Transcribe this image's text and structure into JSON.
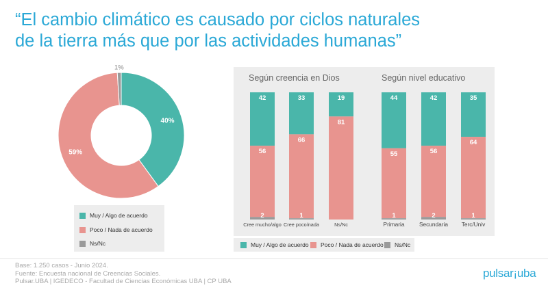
{
  "title": {
    "line1": "“El cambio climático es causado por ciclos naturales",
    "line2": "de la tierra más que por las actividades humanas”"
  },
  "colors": {
    "agree": "#4ab6aa",
    "disagree": "#e8948f",
    "nsnc": "#9a9a9a",
    "title": "#2aa8d6"
  },
  "legend": {
    "agree": "Muy / Algo  de acuerdo",
    "disagree": "Poco / Nada de acuerdo",
    "nsnc": "Ns/Nc"
  },
  "legend_right": {
    "agree": "Muy / Algo de acuerdo",
    "disagree": "Poco / Nada de acuerdo",
    "nsnc": "Ns/Nc"
  },
  "chart_data": [
    {
      "type": "pie",
      "categories": [
        "Muy / Algo  de acuerdo",
        "Poco / Nada de acuerdo",
        "Ns/Nc"
      ],
      "values": [
        40,
        59,
        1
      ],
      "labels": [
        "40%",
        "59%",
        "1%"
      ]
    },
    {
      "type": "bar",
      "stacked": true,
      "title": "Según creencia en Dios",
      "categories": [
        "Cree mucho/algo",
        "Cree poco/nada",
        "Ns/Nc"
      ],
      "series": [
        {
          "name": "Muy / Algo de acuerdo",
          "values": [
            42,
            33,
            19
          ]
        },
        {
          "name": "Poco / Nada de acuerdo",
          "values": [
            56,
            66,
            81
          ]
        },
        {
          "name": "Ns/Nc",
          "values": [
            2,
            1,
            0
          ]
        }
      ],
      "labels": {
        "agree": [
          "42",
          "33",
          "19"
        ],
        "disagree": [
          "56",
          "66",
          "81"
        ],
        "nsnc": [
          "2",
          "1",
          ""
        ]
      }
    },
    {
      "type": "bar",
      "stacked": true,
      "title": "Según nivel educativo",
      "categories": [
        "Primaria",
        "Secundaria",
        "Terc/Univ"
      ],
      "series": [
        {
          "name": "Muy / Algo de acuerdo",
          "values": [
            44,
            42,
            35
          ]
        },
        {
          "name": "Poco / Nada de acuerdo",
          "values": [
            55,
            56,
            64
          ]
        },
        {
          "name": "Ns/Nc",
          "values": [
            1,
            2,
            1
          ]
        }
      ],
      "labels": {
        "agree": [
          "44",
          "42",
          "35"
        ],
        "disagree": [
          "55",
          "56",
          "64"
        ],
        "nsnc": [
          "1",
          "2",
          "1"
        ]
      }
    }
  ],
  "footer": {
    "line1": "Base: 1.250 casos - Junio 2024.",
    "line2": "Fuente: Encuesta nacional de Creencias Sociales.",
    "line3": "Pulsar.UBA | IGEDECO - Facultad de Ciencias Económicas UBA | CP UBA"
  },
  "logo": {
    "text_a": "pulsar",
    "sep": "¡",
    "text_b": "uba"
  }
}
